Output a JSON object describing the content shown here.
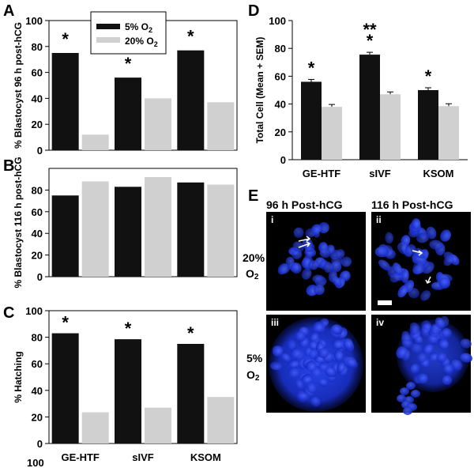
{
  "panels": {
    "A": "A",
    "B": "B",
    "C": "C",
    "D": "D",
    "E": "E"
  },
  "legend": {
    "series1_main": "5% O",
    "series1_sub": "2",
    "series2_main": "20% O",
    "series2_sub": "2"
  },
  "colors": {
    "low_o2": "#111111",
    "high_o2": "#d0d0d0",
    "nuclei": "#1f3df0"
  },
  "chart_data": [
    {
      "panel": "A",
      "type": "bar",
      "categories": [
        "GE-HTF",
        "sIVF",
        "KSOM"
      ],
      "series": [
        {
          "name": "5% O2",
          "values": [
            75,
            56,
            77
          ]
        },
        {
          "name": "20% O2",
          "values": [
            12,
            40,
            37
          ]
        }
      ],
      "ylabel": "% Blastocyst 96 h post-hCG",
      "ylim": [
        0,
        100
      ],
      "yticks": [
        "0",
        "20",
        "40",
        "60",
        "80",
        "100"
      ],
      "significance": [
        "*",
        "*",
        "*"
      ]
    },
    {
      "panel": "B",
      "type": "bar",
      "categories": [
        "GE-HTF",
        "sIVF",
        "KSOM"
      ],
      "series": [
        {
          "name": "5% O2",
          "values": [
            75,
            83,
            87
          ]
        },
        {
          "name": "20% O2",
          "values": [
            88,
            92,
            85
          ]
        }
      ],
      "ylabel": "% Blastocyst 116 h post-hCG",
      "ylim": [
        0,
        100
      ],
      "yticks": [
        "0",
        "20",
        "40",
        "60",
        "80",
        "100"
      ]
    },
    {
      "panel": "C",
      "type": "bar",
      "categories": [
        "GE-HTF",
        "sIVF",
        "KSOM"
      ],
      "series": [
        {
          "name": "5% O2",
          "values": [
            83,
            78.5,
            75
          ]
        },
        {
          "name": "20% O2",
          "values": [
            23.5,
            27,
            35
          ]
        }
      ],
      "ylabel": "% Hatching",
      "ylim": [
        0,
        100
      ],
      "yticks": [
        "0",
        "20",
        "40",
        "60",
        "80",
        "100"
      ],
      "significance": [
        "*",
        "*",
        "*"
      ]
    },
    {
      "panel": "D",
      "type": "bar",
      "categories": [
        "GE-HTF",
        "sIVF",
        "KSOM"
      ],
      "series": [
        {
          "name": "5% O2",
          "values": [
            56,
            75.5,
            50
          ]
        },
        {
          "name": "20% O2",
          "values": [
            38,
            47,
            38.5
          ]
        }
      ],
      "ylabel": "Total Cell (Mean + SEM)",
      "ylim": [
        0,
        100
      ],
      "yticks": [
        "0",
        "20",
        "40",
        "60",
        "80",
        "100"
      ],
      "significance": [
        "*",
        "*",
        "*"
      ],
      "extra_marks": [
        "",
        "**",
        ""
      ]
    }
  ],
  "panelE": {
    "col1": "96 h Post-hCG",
    "col2": "116 h Post-hCG",
    "row1_main": "20%",
    "row1_sub": "O",
    "row1_sub2": "2",
    "row2_main": "5%",
    "row2_sub": "O",
    "row2_sub2": "2",
    "img_i": "i",
    "img_ii": "ii",
    "img_iii": "iii",
    "img_iv": "iv"
  },
  "stray_tick": "100"
}
